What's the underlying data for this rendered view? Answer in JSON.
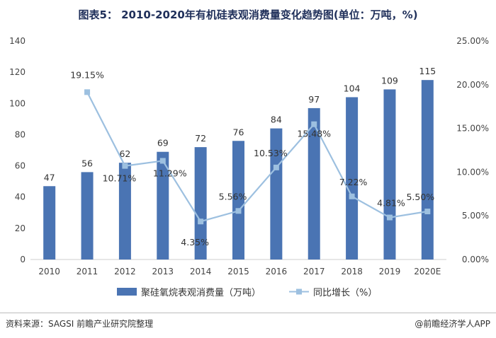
{
  "title": "图表5： 2010-2020年有机硅表观消费量变化趋势图(单位：万吨，%)",
  "source": "资料来源：SAGSI 前瞻产业研究院整理",
  "brand": "@前瞻经济学人APP",
  "colors": {
    "bar": "#4a74b3",
    "line": "#9dc0e0",
    "marker": "#9dc0e0"
  },
  "chart_data": {
    "type": "bar",
    "categories": [
      "2010",
      "2011",
      "2012",
      "2013",
      "2014",
      "2015",
      "2016",
      "2017",
      "2018",
      "2019",
      "2020E"
    ],
    "series": [
      {
        "name": "聚硅氧烷表观消费量（万吨）",
        "type": "bar",
        "axis": "left",
        "values": [
          47,
          56,
          62,
          69,
          72,
          76,
          84,
          97,
          104,
          109,
          115
        ],
        "labels": [
          "47",
          "56",
          "62",
          "69",
          "72",
          "76",
          "84",
          "97",
          "104",
          "109",
          "115"
        ]
      },
      {
        "name": "同比增长（%）",
        "type": "line",
        "axis": "right",
        "values": [
          null,
          19.15,
          10.71,
          11.29,
          4.35,
          5.56,
          10.53,
          15.48,
          7.22,
          4.81,
          5.5
        ],
        "labels": [
          "",
          "19.15%",
          "10.71%",
          "11.29%",
          "4.35%",
          "5.56%",
          "10.53%",
          "15.48%",
          "7.22%",
          "4.81%",
          "5.50%"
        ]
      }
    ],
    "y_left": {
      "min": 0,
      "max": 140,
      "ticks": [
        "0",
        "20",
        "40",
        "60",
        "80",
        "100",
        "120",
        "140"
      ]
    },
    "y_right": {
      "min": 0,
      "max": 25,
      "ticks": [
        "0.00%",
        "5.00%",
        "10.00%",
        "15.00%",
        "20.00%",
        "25.00%"
      ]
    },
    "grid": false,
    "legend": "bottom"
  }
}
